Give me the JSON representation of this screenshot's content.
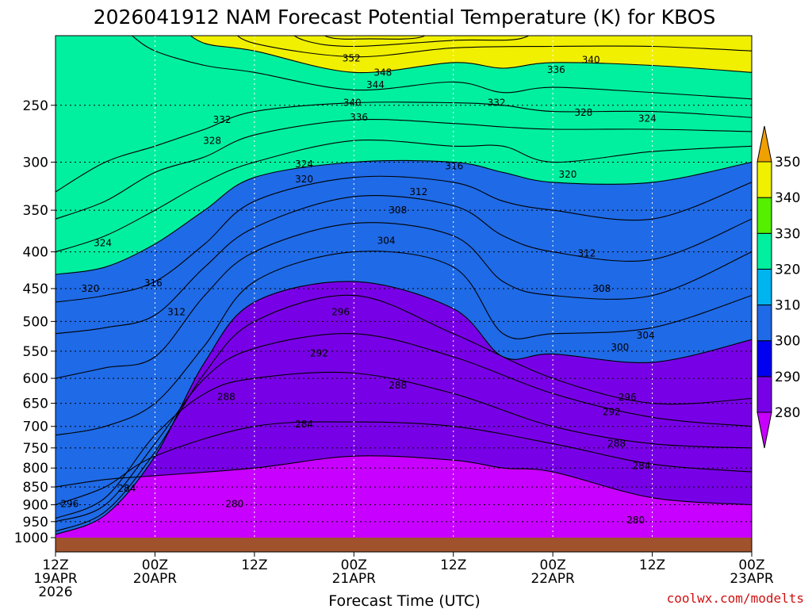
{
  "chart_data": {
    "type": "heatmap",
    "title": "2026041912 NAM Forecast Potential Temperature (K) for KBOS",
    "xlabel": "Forecast Time (UTC)",
    "ylabel": "",
    "credit": "coolwx.com/modelts",
    "x_range_hours": [
      0,
      84
    ],
    "y_range_hpa": [
      1000,
      200
    ],
    "y_scale": "log",
    "grid": true,
    "x_ticks": [
      {
        "hour": 0,
        "lines": [
          "12Z",
          "19APR",
          "2026"
        ]
      },
      {
        "hour": 12,
        "lines": [
          "00Z",
          "20APR"
        ]
      },
      {
        "hour": 24,
        "lines": [
          "12Z"
        ]
      },
      {
        "hour": 36,
        "lines": [
          "00Z",
          "21APR"
        ]
      },
      {
        "hour": 48,
        "lines": [
          "12Z"
        ]
      },
      {
        "hour": 60,
        "lines": [
          "00Z",
          "22APR"
        ]
      },
      {
        "hour": 72,
        "lines": [
          "12Z"
        ]
      },
      {
        "hour": 84,
        "lines": [
          "00Z",
          "23APR"
        ]
      }
    ],
    "y_ticks": [
      {
        "p": 250,
        "label": "250"
      },
      {
        "p": 300,
        "label": "300"
      },
      {
        "p": 350,
        "label": "350"
      },
      {
        "p": 400,
        "label": "400"
      },
      {
        "p": 450,
        "label": "450"
      },
      {
        "p": 500,
        "label": "500"
      },
      {
        "p": 550,
        "label": "550"
      },
      {
        "p": 600,
        "label": "600"
      },
      {
        "p": 650,
        "label": "650"
      },
      {
        "p": 700,
        "label": "700"
      },
      {
        "p": 750,
        "label": "750"
      },
      {
        "p": 800,
        "label": "800"
      },
      {
        "p": 850,
        "label": "850"
      },
      {
        "p": 900,
        "label": "900"
      },
      {
        "p": 950,
        "label": "950"
      },
      {
        "p": 1000,
        "label": "1000"
      }
    ],
    "colorbar": {
      "levels": [
        280,
        290,
        300,
        310,
        320,
        330,
        340,
        350
      ],
      "labels": [
        "280",
        "290",
        "300",
        "310",
        "320",
        "330",
        "340",
        "350"
      ],
      "colors": [
        "#c800ff",
        "#7800e6",
        "#0000f0",
        "#1f6ae6",
        "#00b4f0",
        "#00f0a0",
        "#55f000",
        "#f0f000",
        "#f0a000"
      ]
    },
    "fill_bands": [
      {
        "min": 280,
        "max": 290,
        "color": "#7800e6"
      },
      {
        "min": 290,
        "max": 300,
        "color": "#0000f0"
      },
      {
        "min": 300,
        "max": 310,
        "color": "#1f6ae6"
      },
      {
        "min": 310,
        "max": 320,
        "color": "#00b4f0"
      },
      {
        "min": 320,
        "max": 330,
        "color": "#00f0a0"
      },
      {
        "min": 330,
        "max": 340,
        "color": "#55f000"
      },
      {
        "min": 340,
        "max": 350,
        "color": "#f0f000"
      },
      {
        "min": 350,
        "max": 400,
        "color": "#f0a000"
      }
    ],
    "low_fill": {
      "color": "#c800ff"
    },
    "ground_color": "#a0522d",
    "isentropes": [
      {
        "theta": 280,
        "points": [
          [
            0,
            850
          ],
          [
            6,
            830
          ],
          [
            12,
            820
          ],
          [
            24,
            800
          ],
          [
            36,
            770
          ],
          [
            48,
            780
          ],
          [
            54,
            800
          ],
          [
            60,
            810
          ],
          [
            72,
            880
          ],
          [
            84,
            900
          ]
        ]
      },
      {
        "theta": 284,
        "points": [
          [
            0,
            900
          ],
          [
            6,
            850
          ],
          [
            12,
            770
          ],
          [
            24,
            700
          ],
          [
            36,
            690
          ],
          [
            48,
            700
          ],
          [
            60,
            740
          ],
          [
            72,
            790
          ],
          [
            84,
            810
          ]
        ]
      },
      {
        "theta": 288,
        "points": [
          [
            0,
            940
          ],
          [
            6,
            880
          ],
          [
            12,
            720
          ],
          [
            18,
            630
          ],
          [
            24,
            600
          ],
          [
            36,
            590
          ],
          [
            48,
            630
          ],
          [
            60,
            700
          ],
          [
            72,
            740
          ],
          [
            84,
            750
          ]
        ]
      },
      {
        "theta": 292,
        "points": [
          [
            0,
            950
          ],
          [
            6,
            900
          ],
          [
            12,
            740
          ],
          [
            18,
            600
          ],
          [
            24,
            545
          ],
          [
            36,
            520
          ],
          [
            48,
            560
          ],
          [
            60,
            630
          ],
          [
            72,
            680
          ],
          [
            84,
            700
          ]
        ]
      },
      {
        "theta": 296,
        "points": [
          [
            0,
            980
          ],
          [
            6,
            920
          ],
          [
            12,
            760
          ],
          [
            18,
            590
          ],
          [
            24,
            500
          ],
          [
            36,
            460
          ],
          [
            48,
            520
          ],
          [
            60,
            600
          ],
          [
            72,
            650
          ],
          [
            84,
            640
          ]
        ]
      },
      {
        "theta": 300,
        "points": [
          [
            0,
            990
          ],
          [
            6,
            930
          ],
          [
            12,
            770
          ],
          [
            18,
            570
          ],
          [
            24,
            470
          ],
          [
            36,
            440
          ],
          [
            48,
            480
          ],
          [
            54,
            560
          ],
          [
            60,
            555
          ],
          [
            72,
            570
          ],
          [
            84,
            530
          ]
        ]
      },
      {
        "theta": 304,
        "points": [
          [
            0,
            720
          ],
          [
            6,
            700
          ],
          [
            12,
            650
          ],
          [
            18,
            540
          ],
          [
            24,
            440
          ],
          [
            36,
            400
          ],
          [
            48,
            420
          ],
          [
            54,
            520
          ],
          [
            60,
            520
          ],
          [
            72,
            510
          ],
          [
            84,
            460
          ]
        ]
      },
      {
        "theta": 308,
        "points": [
          [
            0,
            600
          ],
          [
            6,
            580
          ],
          [
            12,
            560
          ],
          [
            18,
            460
          ],
          [
            24,
            400
          ],
          [
            36,
            365
          ],
          [
            48,
            380
          ],
          [
            54,
            440
          ],
          [
            60,
            460
          ],
          [
            72,
            460
          ],
          [
            84,
            400
          ]
        ]
      },
      {
        "theta": 312,
        "points": [
          [
            0,
            520
          ],
          [
            6,
            510
          ],
          [
            12,
            490
          ],
          [
            18,
            420
          ],
          [
            24,
            370
          ],
          [
            36,
            335
          ],
          [
            48,
            345
          ],
          [
            54,
            380
          ],
          [
            60,
            400
          ],
          [
            72,
            410
          ],
          [
            84,
            360
          ]
        ]
      },
      {
        "theta": 316,
        "points": [
          [
            0,
            470
          ],
          [
            6,
            460
          ],
          [
            12,
            440
          ],
          [
            18,
            390
          ],
          [
            24,
            340
          ],
          [
            36,
            315
          ],
          [
            48,
            320
          ],
          [
            54,
            340
          ],
          [
            60,
            350
          ],
          [
            72,
            360
          ],
          [
            84,
            320
          ]
        ]
      },
      {
        "theta": 320,
        "points": [
          [
            0,
            430
          ],
          [
            6,
            420
          ],
          [
            12,
            390
          ],
          [
            18,
            350
          ],
          [
            24,
            315
          ],
          [
            36,
            300
          ],
          [
            48,
            300
          ],
          [
            54,
            310
          ],
          [
            60,
            320
          ],
          [
            72,
            320
          ],
          [
            84,
            300
          ]
        ]
      },
      {
        "theta": 324,
        "points": [
          [
            0,
            400
          ],
          [
            6,
            380
          ],
          [
            12,
            350
          ],
          [
            18,
            320
          ],
          [
            24,
            300
          ],
          [
            36,
            280
          ],
          [
            48,
            285
          ],
          [
            54,
            285
          ],
          [
            60,
            300
          ],
          [
            72,
            290
          ],
          [
            84,
            285
          ]
        ]
      },
      {
        "theta": 328,
        "points": [
          [
            0,
            360
          ],
          [
            6,
            340
          ],
          [
            12,
            310
          ],
          [
            18,
            295
          ],
          [
            24,
            275
          ],
          [
            36,
            262
          ],
          [
            48,
            265
          ],
          [
            54,
            268
          ],
          [
            60,
            270
          ],
          [
            72,
            270
          ],
          [
            84,
            272
          ]
        ]
      },
      {
        "theta": 332,
        "points": [
          [
            0,
            330
          ],
          [
            6,
            300
          ],
          [
            12,
            285
          ],
          [
            18,
            270
          ],
          [
            24,
            255
          ],
          [
            36,
            248
          ],
          [
            48,
            248
          ],
          [
            54,
            250
          ],
          [
            60,
            255
          ],
          [
            72,
            255
          ],
          [
            84,
            260
          ]
        ]
      },
      {
        "theta": 336,
        "points": [
          [
            12,
            210
          ],
          [
            18,
            220
          ],
          [
            24,
            225
          ],
          [
            36,
            238
          ],
          [
            48,
            232
          ],
          [
            54,
            240
          ],
          [
            60,
            236
          ],
          [
            72,
            240
          ],
          [
            84,
            245
          ]
        ]
      },
      {
        "theta": 340,
        "points": [
          [
            18,
            205
          ],
          [
            24,
            210
          ],
          [
            36,
            225
          ],
          [
            48,
            218
          ],
          [
            54,
            222
          ],
          [
            60,
            218
          ],
          [
            72,
            220
          ],
          [
            84,
            225
          ]
        ]
      },
      {
        "theta": 344,
        "points": [
          [
            24,
            205
          ],
          [
            36,
            214
          ],
          [
            48,
            208
          ],
          [
            60,
            207
          ],
          [
            72,
            207
          ],
          [
            84,
            210
          ]
        ]
      },
      {
        "theta": 348,
        "points": [
          [
            30,
            203
          ],
          [
            36,
            207
          ],
          [
            48,
            203
          ],
          [
            56,
            202
          ]
        ]
      },
      {
        "theta": 352,
        "points": [
          [
            33,
            201
          ],
          [
            38,
            202
          ],
          [
            44,
            201
          ]
        ]
      }
    ],
    "contour_labels": [
      {
        "text": "352",
        "x_hour": 35.7,
        "p": 215
      },
      {
        "text": "348",
        "x_hour": 39.5,
        "p": 225
      },
      {
        "text": "344",
        "x_hour": 38.6,
        "p": 234
      },
      {
        "text": "340",
        "x_hour": 64.6,
        "p": 216
      },
      {
        "text": "336",
        "x_hour": 60.4,
        "p": 223
      },
      {
        "text": "340",
        "x_hour": 35.8,
        "p": 248
      },
      {
        "text": "336",
        "x_hour": 36.6,
        "p": 260
      },
      {
        "text": "332",
        "x_hour": 53.2,
        "p": 248
      },
      {
        "text": "332",
        "x_hour": 20.1,
        "p": 262
      },
      {
        "text": "328",
        "x_hour": 63.7,
        "p": 256
      },
      {
        "text": "324",
        "x_hour": 71.4,
        "p": 261
      },
      {
        "text": "328",
        "x_hour": 18.9,
        "p": 280
      },
      {
        "text": "324",
        "x_hour": 30.0,
        "p": 302
      },
      {
        "text": "320",
        "x_hour": 30.0,
        "p": 317
      },
      {
        "text": "316",
        "x_hour": 48.1,
        "p": 304
      },
      {
        "text": "320",
        "x_hour": 61.8,
        "p": 312
      },
      {
        "text": "312",
        "x_hour": 43.8,
        "p": 330
      },
      {
        "text": "308",
        "x_hour": 41.3,
        "p": 350
      },
      {
        "text": "304",
        "x_hour": 39.9,
        "p": 386
      },
      {
        "text": "312",
        "x_hour": 64.1,
        "p": 402
      },
      {
        "text": "324",
        "x_hour": 5.7,
        "p": 389
      },
      {
        "text": "316",
        "x_hour": 11.8,
        "p": 442
      },
      {
        "text": "320",
        "x_hour": 4.2,
        "p": 450
      },
      {
        "text": "308",
        "x_hour": 65.9,
        "p": 450
      },
      {
        "text": "312",
        "x_hour": 14.6,
        "p": 485
      },
      {
        "text": "296",
        "x_hour": 34.4,
        "p": 485
      },
      {
        "text": "304",
        "x_hour": 71.2,
        "p": 523
      },
      {
        "text": "300",
        "x_hour": 68.1,
        "p": 543
      },
      {
        "text": "292",
        "x_hour": 31.8,
        "p": 554
      },
      {
        "text": "288",
        "x_hour": 41.3,
        "p": 614
      },
      {
        "text": "296",
        "x_hour": 69.0,
        "p": 638
      },
      {
        "text": "288",
        "x_hour": 20.6,
        "p": 637
      },
      {
        "text": "292",
        "x_hour": 67.1,
        "p": 668
      },
      {
        "text": "284",
        "x_hour": 30.0,
        "p": 695
      },
      {
        "text": "288",
        "x_hour": 67.7,
        "p": 740
      },
      {
        "text": "284",
        "x_hour": 70.7,
        "p": 794
      },
      {
        "text": "284",
        "x_hour": 8.6,
        "p": 854
      },
      {
        "text": "280",
        "x_hour": 21.6,
        "p": 898
      },
      {
        "text": "296",
        "x_hour": 1.7,
        "p": 898
      },
      {
        "text": "280",
        "x_hour": 70.0,
        "p": 945
      }
    ]
  }
}
